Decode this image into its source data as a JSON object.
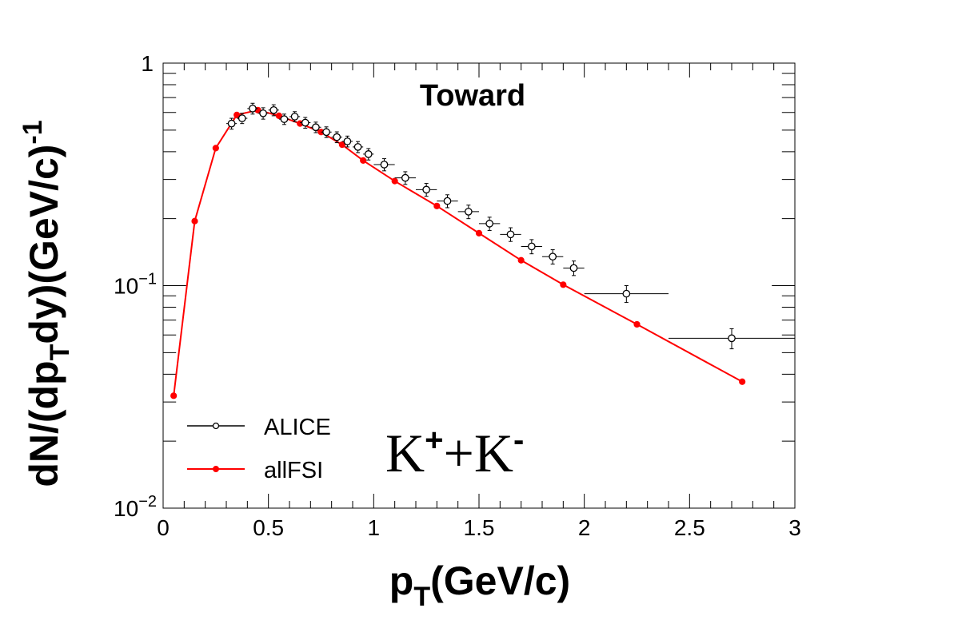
{
  "chart_data": {
    "type": "scatter",
    "title": "Toward",
    "particle_label": {
      "main1": "K",
      "sup1": "+",
      "mid": "+K",
      "sup2": "-"
    },
    "xlabel": {
      "main": "p",
      "sub": "T",
      "rest": "(GeV/c)"
    },
    "ylabel": {
      "pre": "dN/(dp",
      "sub": "T",
      "mid": "dy)(GeV/c)",
      "sup": "-1"
    },
    "xlim": [
      0,
      3
    ],
    "ylim": [
      0.01,
      1
    ],
    "yscale": "log",
    "x_ticks": [
      "0",
      "0.5",
      "1",
      "1.5",
      "2",
      "2.5",
      "3"
    ],
    "y_ticks": [
      {
        "value": 1,
        "base": "1",
        "exp": ""
      },
      {
        "value": 0.1,
        "base": "10",
        "exp": "−1"
      },
      {
        "value": 0.01,
        "base": "10",
        "exp": "−2"
      }
    ],
    "grid": false,
    "legend_position": "bottom-left",
    "series": [
      {
        "name": "ALICE",
        "color": "#000000",
        "marker": "open-circle",
        "line": false,
        "points": [
          {
            "x": 0.325,
            "y": 0.535,
            "xerr": 0.025,
            "yerr": 0.03
          },
          {
            "x": 0.375,
            "y": 0.565,
            "xerr": 0.025,
            "yerr": 0.03
          },
          {
            "x": 0.425,
            "y": 0.625,
            "xerr": 0.025,
            "yerr": 0.035
          },
          {
            "x": 0.475,
            "y": 0.595,
            "xerr": 0.025,
            "yerr": 0.035
          },
          {
            "x": 0.525,
            "y": 0.615,
            "xerr": 0.025,
            "yerr": 0.035
          },
          {
            "x": 0.575,
            "y": 0.56,
            "xerr": 0.025,
            "yerr": 0.03
          },
          {
            "x": 0.625,
            "y": 0.575,
            "xerr": 0.025,
            "yerr": 0.03
          },
          {
            "x": 0.675,
            "y": 0.54,
            "xerr": 0.025,
            "yerr": 0.03
          },
          {
            "x": 0.725,
            "y": 0.515,
            "xerr": 0.025,
            "yerr": 0.028
          },
          {
            "x": 0.775,
            "y": 0.49,
            "xerr": 0.025,
            "yerr": 0.027
          },
          {
            "x": 0.825,
            "y": 0.465,
            "xerr": 0.025,
            "yerr": 0.026
          },
          {
            "x": 0.875,
            "y": 0.445,
            "xerr": 0.025,
            "yerr": 0.025
          },
          {
            "x": 0.925,
            "y": 0.42,
            "xerr": 0.025,
            "yerr": 0.024
          },
          {
            "x": 0.975,
            "y": 0.39,
            "xerr": 0.025,
            "yerr": 0.023
          },
          {
            "x": 1.05,
            "y": 0.35,
            "xerr": 0.05,
            "yerr": 0.022
          },
          {
            "x": 1.15,
            "y": 0.305,
            "xerr": 0.05,
            "yerr": 0.02
          },
          {
            "x": 1.25,
            "y": 0.27,
            "xerr": 0.05,
            "yerr": 0.018
          },
          {
            "x": 1.35,
            "y": 0.24,
            "xerr": 0.05,
            "yerr": 0.016
          },
          {
            "x": 1.45,
            "y": 0.215,
            "xerr": 0.05,
            "yerr": 0.015
          },
          {
            "x": 1.55,
            "y": 0.19,
            "xerr": 0.05,
            "yerr": 0.013
          },
          {
            "x": 1.65,
            "y": 0.17,
            "xerr": 0.05,
            "yerr": 0.012
          },
          {
            "x": 1.75,
            "y": 0.15,
            "xerr": 0.05,
            "yerr": 0.011
          },
          {
            "x": 1.85,
            "y": 0.135,
            "xerr": 0.05,
            "yerr": 0.01
          },
          {
            "x": 1.95,
            "y": 0.12,
            "xerr": 0.05,
            "yerr": 0.009
          },
          {
            "x": 2.2,
            "y": 0.092,
            "xerr": 0.2,
            "yerr": 0.008
          },
          {
            "x": 2.7,
            "y": 0.058,
            "xerr": 0.3,
            "yerr": 0.006
          }
        ]
      },
      {
        "name": "allFSI",
        "color": "#ff0000",
        "marker": "filled-circle",
        "line": true,
        "points": [
          {
            "x": 0.05,
            "y": 0.032
          },
          {
            "x": 0.15,
            "y": 0.195
          },
          {
            "x": 0.25,
            "y": 0.415
          },
          {
            "x": 0.35,
            "y": 0.585
          },
          {
            "x": 0.45,
            "y": 0.615
          },
          {
            "x": 0.55,
            "y": 0.58
          },
          {
            "x": 0.65,
            "y": 0.535
          },
          {
            "x": 0.75,
            "y": 0.49
          },
          {
            "x": 0.85,
            "y": 0.43
          },
          {
            "x": 0.95,
            "y": 0.365
          },
          {
            "x": 1.1,
            "y": 0.295
          },
          {
            "x": 1.3,
            "y": 0.228
          },
          {
            "x": 1.5,
            "y": 0.172
          },
          {
            "x": 1.7,
            "y": 0.13
          },
          {
            "x": 1.9,
            "y": 0.101
          },
          {
            "x": 2.25,
            "y": 0.067
          },
          {
            "x": 2.75,
            "y": 0.037
          }
        ]
      }
    ]
  }
}
